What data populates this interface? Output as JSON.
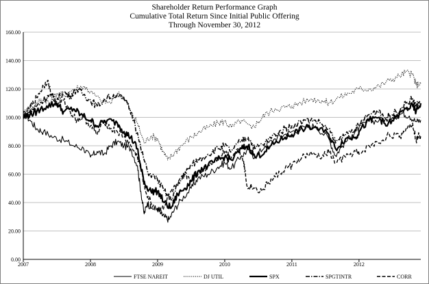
{
  "chart_data": {
    "type": "line",
    "title": "Shareholder Return Performance Graph",
    "subtitle_line1": "Cumulative Total Return Since Initial Public Offering",
    "subtitle_line2": "Through November 30, 2012",
    "xlabel": "",
    "ylabel": "",
    "ylim": [
      0,
      160
    ],
    "y_ticks": [
      "0.00",
      "20.00",
      "40.00",
      "60.00",
      "80.00",
      "100.00",
      "120.00",
      "140.00",
      "160.00"
    ],
    "x_ticks": [
      "2007",
      "2008",
      "2009",
      "2010",
      "2011",
      "2012"
    ],
    "x_tick_values": [
      2007.0,
      2008.0,
      2009.0,
      2010.0,
      2011.0,
      2012.0
    ],
    "xlim": [
      2007.0,
      2012.92
    ],
    "grid": true,
    "legend_position": "bottom",
    "series": [
      {
        "name": "FTSE NAREIT",
        "style": "solid-thin",
        "points": [
          [
            2007.0,
            103
          ],
          [
            2007.1,
            98
          ],
          [
            2007.2,
            92
          ],
          [
            2007.3,
            90
          ],
          [
            2007.45,
            86
          ],
          [
            2007.6,
            84
          ],
          [
            2007.75,
            80
          ],
          [
            2007.9,
            78
          ],
          [
            2008.0,
            72
          ],
          [
            2008.1,
            76
          ],
          [
            2008.2,
            74
          ],
          [
            2008.3,
            80
          ],
          [
            2008.4,
            83
          ],
          [
            2008.5,
            80
          ],
          [
            2008.6,
            78
          ],
          [
            2008.7,
            66
          ],
          [
            2008.75,
            48
          ],
          [
            2008.8,
            32
          ],
          [
            2008.85,
            40
          ],
          [
            2008.9,
            36
          ],
          [
            2009.0,
            36
          ],
          [
            2009.05,
            32
          ],
          [
            2009.1,
            30
          ],
          [
            2009.17,
            28
          ],
          [
            2009.25,
            35
          ],
          [
            2009.35,
            42
          ],
          [
            2009.5,
            50
          ],
          [
            2009.6,
            57
          ],
          [
            2009.75,
            60
          ],
          [
            2009.9,
            65
          ],
          [
            2010.0,
            68
          ],
          [
            2010.1,
            64
          ],
          [
            2010.25,
            73
          ],
          [
            2010.35,
            77
          ],
          [
            2010.45,
            72
          ],
          [
            2010.6,
            80
          ],
          [
            2010.75,
            85
          ],
          [
            2010.9,
            88
          ],
          [
            2011.0,
            90
          ],
          [
            2011.2,
            93
          ],
          [
            2011.35,
            94
          ],
          [
            2011.55,
            85
          ],
          [
            2011.65,
            73
          ],
          [
            2011.75,
            80
          ],
          [
            2011.9,
            88
          ],
          [
            2012.0,
            93
          ],
          [
            2012.15,
            97
          ],
          [
            2012.3,
            98
          ],
          [
            2012.5,
            100
          ],
          [
            2012.65,
            103
          ],
          [
            2012.75,
            101
          ],
          [
            2012.85,
            97
          ],
          [
            2012.92,
            98
          ]
        ]
      },
      {
        "name": "DJ UTIL",
        "style": "dotted",
        "points": [
          [
            2007.0,
            103
          ],
          [
            2007.1,
            105
          ],
          [
            2007.2,
            110
          ],
          [
            2007.3,
            113
          ],
          [
            2007.4,
            110
          ],
          [
            2007.5,
            117
          ],
          [
            2007.6,
            115
          ],
          [
            2007.75,
            120
          ],
          [
            2007.9,
            122
          ],
          [
            2008.0,
            118
          ],
          [
            2008.15,
            112
          ],
          [
            2008.3,
            110
          ],
          [
            2008.4,
            117
          ],
          [
            2008.5,
            114
          ],
          [
            2008.6,
            104
          ],
          [
            2008.7,
            96
          ],
          [
            2008.8,
            82
          ],
          [
            2008.9,
            87
          ],
          [
            2009.0,
            85
          ],
          [
            2009.08,
            76
          ],
          [
            2009.15,
            70
          ],
          [
            2009.25,
            75
          ],
          [
            2009.35,
            80
          ],
          [
            2009.5,
            86
          ],
          [
            2009.6,
            89
          ],
          [
            2009.75,
            93
          ],
          [
            2009.9,
            96
          ],
          [
            2010.0,
            97
          ],
          [
            2010.1,
            93
          ],
          [
            2010.25,
            98
          ],
          [
            2010.4,
            92
          ],
          [
            2010.5,
            97
          ],
          [
            2010.6,
            102
          ],
          [
            2010.75,
            106
          ],
          [
            2010.9,
            107
          ],
          [
            2011.0,
            108
          ],
          [
            2011.1,
            110
          ],
          [
            2011.3,
            113
          ],
          [
            2011.45,
            112
          ],
          [
            2011.55,
            110
          ],
          [
            2011.7,
            114
          ],
          [
            2011.85,
            117
          ],
          [
            2012.0,
            120
          ],
          [
            2012.15,
            120
          ],
          [
            2012.3,
            122
          ],
          [
            2012.45,
            126
          ],
          [
            2012.6,
            129
          ],
          [
            2012.7,
            132
          ],
          [
            2012.8,
            130
          ],
          [
            2012.85,
            123
          ],
          [
            2012.92,
            124
          ]
        ]
      },
      {
        "name": "SPX",
        "style": "solid-thick",
        "points": [
          [
            2007.0,
            100
          ],
          [
            2007.1,
            102
          ],
          [
            2007.2,
            104
          ],
          [
            2007.35,
            108
          ],
          [
            2007.5,
            110
          ],
          [
            2007.6,
            104
          ],
          [
            2007.75,
            106
          ],
          [
            2007.85,
            102
          ],
          [
            2008.0,
            98
          ],
          [
            2008.1,
            94
          ],
          [
            2008.25,
            98
          ],
          [
            2008.4,
            96
          ],
          [
            2008.5,
            90
          ],
          [
            2008.6,
            86
          ],
          [
            2008.7,
            78
          ],
          [
            2008.75,
            64
          ],
          [
            2008.82,
            52
          ],
          [
            2008.9,
            48
          ],
          [
            2009.0,
            48
          ],
          [
            2009.1,
            40
          ],
          [
            2009.2,
            36
          ],
          [
            2009.3,
            46
          ],
          [
            2009.4,
            50
          ],
          [
            2009.5,
            55
          ],
          [
            2009.6,
            62
          ],
          [
            2009.75,
            66
          ],
          [
            2009.9,
            70
          ],
          [
            2010.0,
            72
          ],
          [
            2010.1,
            70
          ],
          [
            2010.25,
            78
          ],
          [
            2010.35,
            80
          ],
          [
            2010.45,
            72
          ],
          [
            2010.6,
            76
          ],
          [
            2010.75,
            82
          ],
          [
            2010.9,
            86
          ],
          [
            2011.0,
            88
          ],
          [
            2011.15,
            92
          ],
          [
            2011.35,
            93
          ],
          [
            2011.55,
            88
          ],
          [
            2011.65,
            78
          ],
          [
            2011.8,
            85
          ],
          [
            2011.95,
            86
          ],
          [
            2012.0,
            90
          ],
          [
            2012.15,
            98
          ],
          [
            2012.3,
            100
          ],
          [
            2012.4,
            94
          ],
          [
            2012.55,
            100
          ],
          [
            2012.7,
            106
          ],
          [
            2012.8,
            108
          ],
          [
            2012.85,
            104
          ],
          [
            2012.92,
            110
          ]
        ]
      },
      {
        "name": "SPGTINTR",
        "style": "dash-dot",
        "points": [
          [
            2007.0,
            100
          ],
          [
            2007.1,
            104
          ],
          [
            2007.2,
            108
          ],
          [
            2007.3,
            112
          ],
          [
            2007.4,
            116
          ],
          [
            2007.5,
            112
          ],
          [
            2007.6,
            118
          ],
          [
            2007.7,
            115
          ],
          [
            2007.8,
            120
          ],
          [
            2007.9,
            116
          ],
          [
            2008.0,
            112
          ],
          [
            2008.1,
            108
          ],
          [
            2008.25,
            114
          ],
          [
            2008.4,
            116
          ],
          [
            2008.55,
            110
          ],
          [
            2008.65,
            98
          ],
          [
            2008.75,
            78
          ],
          [
            2008.85,
            62
          ],
          [
            2009.0,
            56
          ],
          [
            2009.1,
            48
          ],
          [
            2009.2,
            42
          ],
          [
            2009.3,
            52
          ],
          [
            2009.4,
            60
          ],
          [
            2009.5,
            66
          ],
          [
            2009.6,
            70
          ],
          [
            2009.75,
            74
          ],
          [
            2009.9,
            78
          ],
          [
            2010.0,
            80
          ],
          [
            2010.1,
            76
          ],
          [
            2010.25,
            84
          ],
          [
            2010.35,
            86
          ],
          [
            2010.45,
            78
          ],
          [
            2010.6,
            82
          ],
          [
            2010.75,
            88
          ],
          [
            2010.9,
            92
          ],
          [
            2011.0,
            94
          ],
          [
            2011.2,
            98
          ],
          [
            2011.35,
            98
          ],
          [
            2011.55,
            92
          ],
          [
            2011.65,
            82
          ],
          [
            2011.8,
            88
          ],
          [
            2011.95,
            92
          ],
          [
            2012.0,
            95
          ],
          [
            2012.15,
            102
          ],
          [
            2012.3,
            105
          ],
          [
            2012.4,
            99
          ],
          [
            2012.55,
            104
          ],
          [
            2012.7,
            110
          ],
          [
            2012.8,
            113
          ],
          [
            2012.85,
            108
          ],
          [
            2012.92,
            112
          ]
        ]
      },
      {
        "name": "CORR",
        "style": "dashed",
        "points": [
          [
            2007.0,
            100
          ],
          [
            2007.08,
            106
          ],
          [
            2007.15,
            110
          ],
          [
            2007.22,
            116
          ],
          [
            2007.3,
            122
          ],
          [
            2007.36,
            126
          ],
          [
            2007.42,
            116
          ],
          [
            2007.5,
            108
          ],
          [
            2007.6,
            112
          ],
          [
            2007.7,
            104
          ],
          [
            2007.8,
            98
          ],
          [
            2007.9,
            100
          ],
          [
            2008.0,
            94
          ],
          [
            2008.1,
            88
          ],
          [
            2008.2,
            98
          ],
          [
            2008.3,
            92
          ],
          [
            2008.4,
            90
          ],
          [
            2008.5,
            86
          ],
          [
            2008.6,
            80
          ],
          [
            2008.7,
            72
          ],
          [
            2008.76,
            62
          ],
          [
            2008.82,
            48
          ],
          [
            2008.9,
            40
          ],
          [
            2009.0,
            34
          ],
          [
            2009.1,
            38
          ],
          [
            2009.2,
            48
          ],
          [
            2009.3,
            52
          ],
          [
            2009.4,
            60
          ],
          [
            2009.5,
            56
          ],
          [
            2009.6,
            60
          ],
          [
            2009.75,
            66
          ],
          [
            2009.9,
            72
          ],
          [
            2010.0,
            76
          ],
          [
            2010.1,
            72
          ],
          [
            2010.2,
            78
          ],
          [
            2010.28,
            70
          ],
          [
            2010.33,
            52
          ],
          [
            2010.45,
            50
          ],
          [
            2010.55,
            48
          ],
          [
            2010.65,
            54
          ],
          [
            2010.75,
            58
          ],
          [
            2010.9,
            64
          ],
          [
            2011.0,
            66
          ],
          [
            2011.15,
            72
          ],
          [
            2011.3,
            74
          ],
          [
            2011.45,
            72
          ],
          [
            2011.55,
            76
          ],
          [
            2011.65,
            68
          ],
          [
            2011.8,
            72
          ],
          [
            2011.95,
            76
          ],
          [
            2012.0,
            74
          ],
          [
            2012.15,
            80
          ],
          [
            2012.3,
            82
          ],
          [
            2012.45,
            88
          ],
          [
            2012.6,
            86
          ],
          [
            2012.7,
            92
          ],
          [
            2012.8,
            96
          ],
          [
            2012.85,
            84
          ],
          [
            2012.9,
            88
          ],
          [
            2012.92,
            86
          ]
        ]
      }
    ]
  }
}
